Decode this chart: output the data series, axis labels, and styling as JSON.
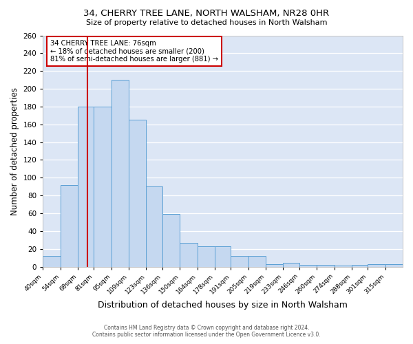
{
  "title": "34, CHERRY TREE LANE, NORTH WALSHAM, NR28 0HR",
  "subtitle": "Size of property relative to detached houses in North Walsham",
  "xlabel": "Distribution of detached houses by size in North Walsham",
  "ylabel": "Number of detached properties",
  "bin_labels": [
    "40sqm",
    "54sqm",
    "68sqm",
    "81sqm",
    "95sqm",
    "109sqm",
    "123sqm",
    "136sqm",
    "150sqm",
    "164sqm",
    "178sqm",
    "191sqm",
    "205sqm",
    "219sqm",
    "233sqm",
    "246sqm",
    "260sqm",
    "274sqm",
    "288sqm",
    "301sqm",
    "315sqm"
  ],
  "bin_edges": [
    40,
    54,
    68,
    81,
    95,
    109,
    123,
    136,
    150,
    164,
    178,
    191,
    205,
    219,
    233,
    246,
    260,
    274,
    288,
    301,
    315,
    329
  ],
  "bar_heights": [
    12,
    92,
    180,
    180,
    210,
    165,
    90,
    59,
    27,
    23,
    23,
    12,
    12,
    3,
    4,
    2,
    2,
    1,
    2,
    3,
    3
  ],
  "bar_color": "#c5d8f0",
  "bar_edge_color": "#5a9fd4",
  "property_value": 76,
  "vline_color": "#cc0000",
  "ylim": [
    0,
    260
  ],
  "annotation_line1": "34 CHERRY TREE LANE: 76sqm",
  "annotation_line2": "← 18% of detached houses are smaller (200)",
  "annotation_line3": "81% of semi-detached houses are larger (881) →",
  "annotation_box_edge_color": "#cc0000",
  "footer1": "Contains HM Land Registry data © Crown copyright and database right 2024.",
  "footer2": "Contains public sector information licensed under the Open Government Licence v3.0.",
  "fig_bg_color": "#ffffff",
  "plot_bg_color": "#dce6f5"
}
